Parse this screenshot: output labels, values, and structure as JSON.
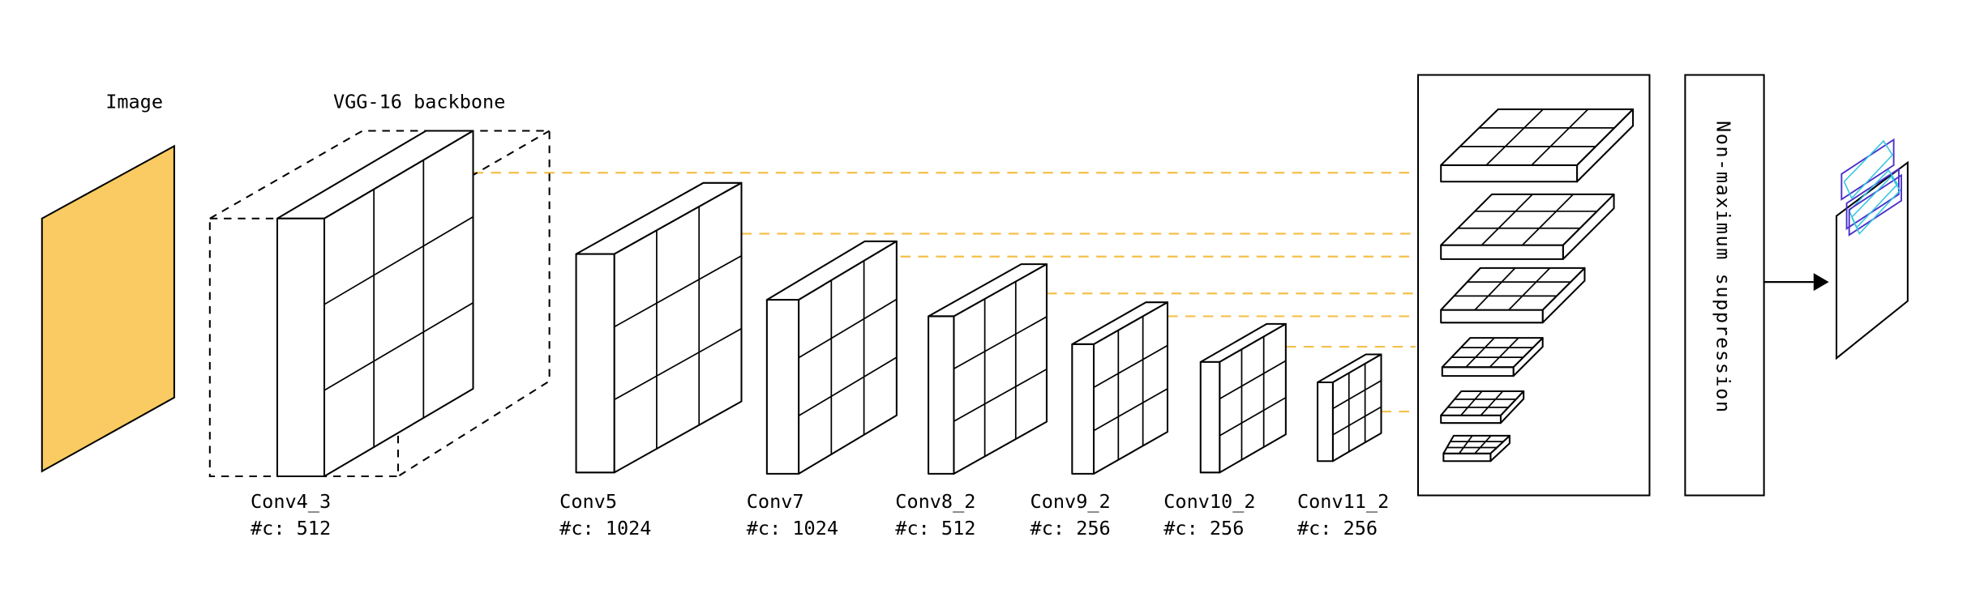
{
  "labels": {
    "image": "Image",
    "backbone": "VGG-16 backbone",
    "nms": "Non-maximum suppression"
  },
  "layers": [
    {
      "name": "Conv4_3",
      "channels": "#c: 512"
    },
    {
      "name": "Conv5",
      "channels": "#c: 1024"
    },
    {
      "name": "Conv7",
      "channels": "#c: 1024"
    },
    {
      "name": "Conv8_2",
      "channels": "#c: 512"
    },
    {
      "name": "Conv9_2",
      "channels": "#c: 256"
    },
    {
      "name": "Conv10_2",
      "channels": "#c: 256"
    },
    {
      "name": "Conv11_2",
      "channels": "#c: 256"
    }
  ],
  "colors": {
    "image_fill": "#F9CB62",
    "connector": "#F4C04A",
    "box_outline": "#4B2FC9",
    "box_inner": "#36C6E0"
  },
  "icons": {
    "arrow": "arrow-right-icon"
  }
}
